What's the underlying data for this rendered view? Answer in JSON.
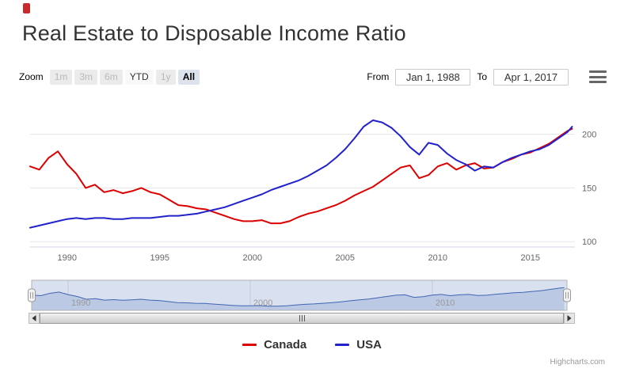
{
  "logo": {
    "color": "#c92a2a"
  },
  "title": "Real Estate to Disposable Income Ratio",
  "range_selector": {
    "zoom_label": "Zoom",
    "buttons": [
      {
        "label": "1m",
        "state": "disabled"
      },
      {
        "label": "3m",
        "state": "disabled"
      },
      {
        "label": "6m",
        "state": "disabled"
      },
      {
        "label": "YTD",
        "state": "enabled"
      },
      {
        "label": "1y",
        "state": "disabled"
      },
      {
        "label": "All",
        "state": "selected"
      }
    ],
    "from_label": "From",
    "from_value": "Jan 1, 1988",
    "to_label": "To",
    "to_value": "Apr 1, 2017"
  },
  "chart_data": {
    "type": "line",
    "title": "Real Estate to Disposable Income Ratio",
    "xlabel": "",
    "ylabel": "",
    "xlim": [
      1988,
      2017.4
    ],
    "ylim": [
      95,
      235
    ],
    "xticks": [
      1990,
      1995,
      2000,
      2005,
      2010,
      2015
    ],
    "yticks": [
      100,
      150,
      200
    ],
    "grid": true,
    "legend_position": "bottom",
    "x": [
      1988,
      1988.5,
      1989,
      1989.5,
      1990,
      1990.5,
      1991,
      1991.5,
      1992,
      1992.5,
      1993,
      1993.5,
      1994,
      1994.5,
      1995,
      1995.5,
      1996,
      1996.5,
      1997,
      1997.5,
      1998,
      1998.5,
      1999,
      1999.5,
      2000,
      2000.5,
      2001,
      2001.5,
      2002,
      2002.5,
      2003,
      2003.5,
      2004,
      2004.5,
      2005,
      2005.5,
      2006,
      2006.5,
      2007,
      2007.5,
      2008,
      2008.5,
      2009,
      2009.5,
      2010,
      2010.5,
      2011,
      2011.5,
      2012,
      2012.5,
      2013,
      2013.5,
      2014,
      2014.5,
      2015,
      2015.5,
      2016,
      2016.5,
      2017,
      2017.25
    ],
    "series": [
      {
        "name": "Canada",
        "color": "#dd0000",
        "values": [
          170,
          167,
          178,
          184,
          172,
          163,
          150,
          153,
          146,
          148,
          145,
          147,
          150,
          146,
          144,
          139,
          134,
          133,
          131,
          130,
          127,
          124,
          121,
          119,
          119,
          120,
          117,
          117,
          119,
          123,
          126,
          128,
          131,
          134,
          138,
          143,
          147,
          151,
          157,
          163,
          169,
          171,
          159,
          162,
          170,
          173,
          167,
          171,
          173,
          168,
          169,
          174,
          177,
          181,
          183,
          187,
          191,
          197,
          203,
          205
        ]
      },
      {
        "name": "USA",
        "color": "#2222cc",
        "values": [
          113,
          115,
          117,
          119,
          121,
          122,
          121,
          122,
          122,
          121,
          121,
          122,
          122,
          122,
          123,
          124,
          124,
          125,
          126,
          128,
          130,
          132,
          135,
          138,
          141,
          144,
          148,
          151,
          154,
          157,
          161,
          166,
          171,
          178,
          186,
          196,
          207,
          213,
          211,
          206,
          198,
          188,
          181,
          192,
          190,
          182,
          176,
          172,
          166,
          170,
          169,
          174,
          178,
          181,
          184,
          186,
          190,
          196,
          202,
          207
        ]
      }
    ]
  },
  "navigator": {
    "labels": [
      "1990",
      "2000",
      "2010"
    ],
    "tick_years": [
      1990,
      2000,
      2010
    ],
    "series_color": "#335cad",
    "area_color": "#d7e0f0",
    "mask_color": "rgba(102,133,194,0.25)"
  },
  "legend": [
    {
      "label": "Canada",
      "color": "#dd0000"
    },
    {
      "label": "USA",
      "color": "#2222cc"
    }
  ],
  "credits": "Highcharts.com"
}
